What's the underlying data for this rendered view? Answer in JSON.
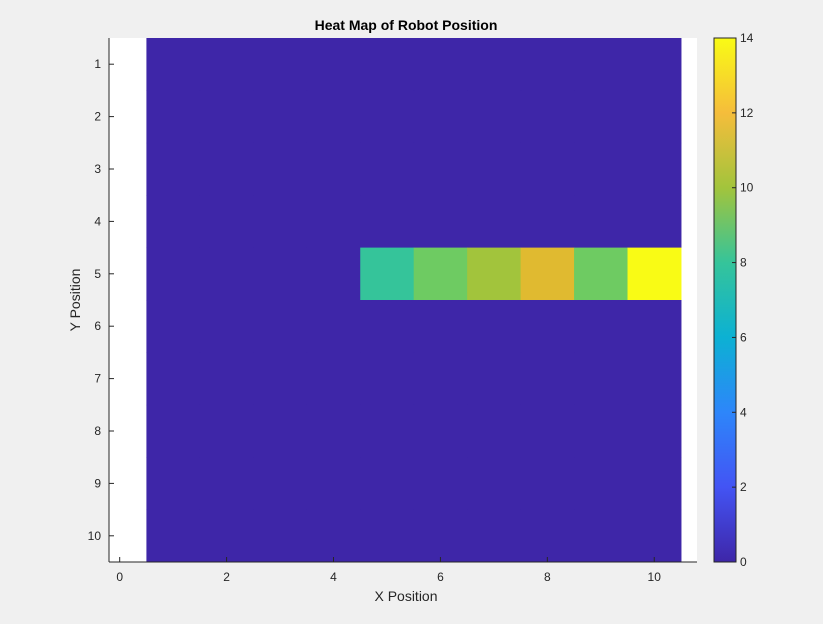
{
  "chart_data": {
    "type": "heatmap",
    "title": "Heat Map of Robot Position",
    "xlabel": "X Position",
    "ylabel": "Y Position",
    "xlim": [
      -0.2,
      10.8
    ],
    "ylim": [
      0.5,
      10.5
    ],
    "x_ticks": [
      0,
      2,
      4,
      6,
      8,
      10
    ],
    "y_ticks": [
      1,
      2,
      3,
      4,
      5,
      6,
      7,
      8,
      9,
      10
    ],
    "y_direction": "reverse",
    "colormap": "parula",
    "colorbar": {
      "min": 0,
      "max": 14,
      "ticks": [
        0,
        2,
        4,
        6,
        8,
        10,
        12,
        14
      ],
      "placement": "right"
    },
    "x_cells": [
      1,
      2,
      3,
      4,
      5,
      6,
      7,
      8,
      9,
      10
    ],
    "y_cells": [
      1,
      2,
      3,
      4,
      5,
      6,
      7,
      8,
      9,
      10
    ],
    "z": [
      [
        0,
        0,
        0,
        0,
        0,
        0,
        0,
        0,
        0,
        0
      ],
      [
        0,
        0,
        0,
        0,
        0,
        0,
        0,
        0,
        0,
        0
      ],
      [
        0,
        0,
        0,
        0,
        0,
        0,
        0,
        0,
        0,
        0
      ],
      [
        0,
        0,
        0,
        0,
        0,
        0,
        0,
        0,
        0,
        0
      ],
      [
        0,
        0,
        0,
        0,
        8,
        9,
        10,
        11,
        9,
        14
      ],
      [
        0,
        0,
        0,
        0,
        0,
        0,
        0,
        0,
        0,
        0
      ],
      [
        0,
        0,
        0,
        0,
        0,
        0,
        0,
        0,
        0,
        0
      ],
      [
        0,
        0,
        0,
        0,
        0,
        0,
        0,
        0,
        0,
        0
      ],
      [
        0,
        0,
        0,
        0,
        0,
        0,
        0,
        0,
        0,
        0
      ],
      [
        0,
        0,
        0,
        0,
        0,
        0,
        0,
        0,
        0,
        0
      ]
    ],
    "grid": false
  },
  "colors": {
    "figure_background": "#f0f0f0",
    "axes_background": "#ffffff",
    "axis_line": "#262626"
  }
}
